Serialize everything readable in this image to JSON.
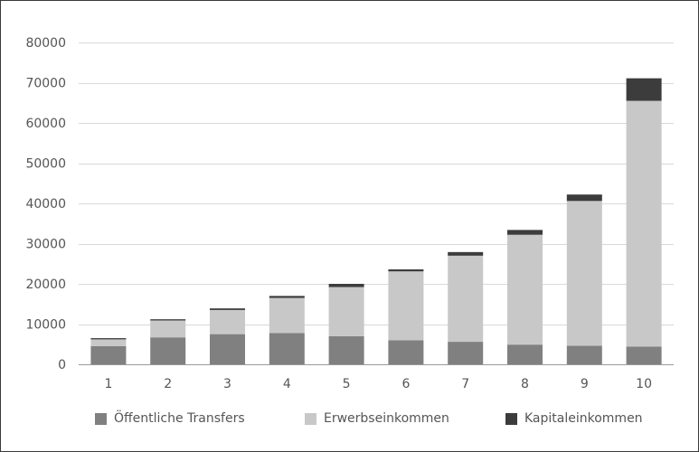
{
  "chart_data": {
    "type": "bar",
    "stacked": true,
    "categories": [
      "1",
      "2",
      "3",
      "4",
      "5",
      "6",
      "7",
      "8",
      "9",
      "10"
    ],
    "series": [
      {
        "name": "Öffentliche Transfers",
        "color": "#808080",
        "values": [
          4500,
          6700,
          7500,
          7800,
          7000,
          6000,
          5600,
          4900,
          4600,
          4400
        ]
      },
      {
        "name": "Erwerbseinkommen",
        "color": "#c8c8c8",
        "values": [
          1700,
          4200,
          6000,
          8700,
          12200,
          17100,
          21400,
          27300,
          36000,
          61100
        ]
      },
      {
        "name": "Kapitaleinkommen",
        "color": "#3c3c3c",
        "values": [
          300,
          300,
          400,
          500,
          800,
          500,
          900,
          1200,
          1600,
          5600
        ]
      }
    ],
    "ylim": [
      0,
      80000
    ],
    "yticks": [
      0,
      10000,
      20000,
      30000,
      40000,
      50000,
      60000,
      70000,
      80000
    ],
    "grid": true,
    "legend_position": "bottom"
  }
}
